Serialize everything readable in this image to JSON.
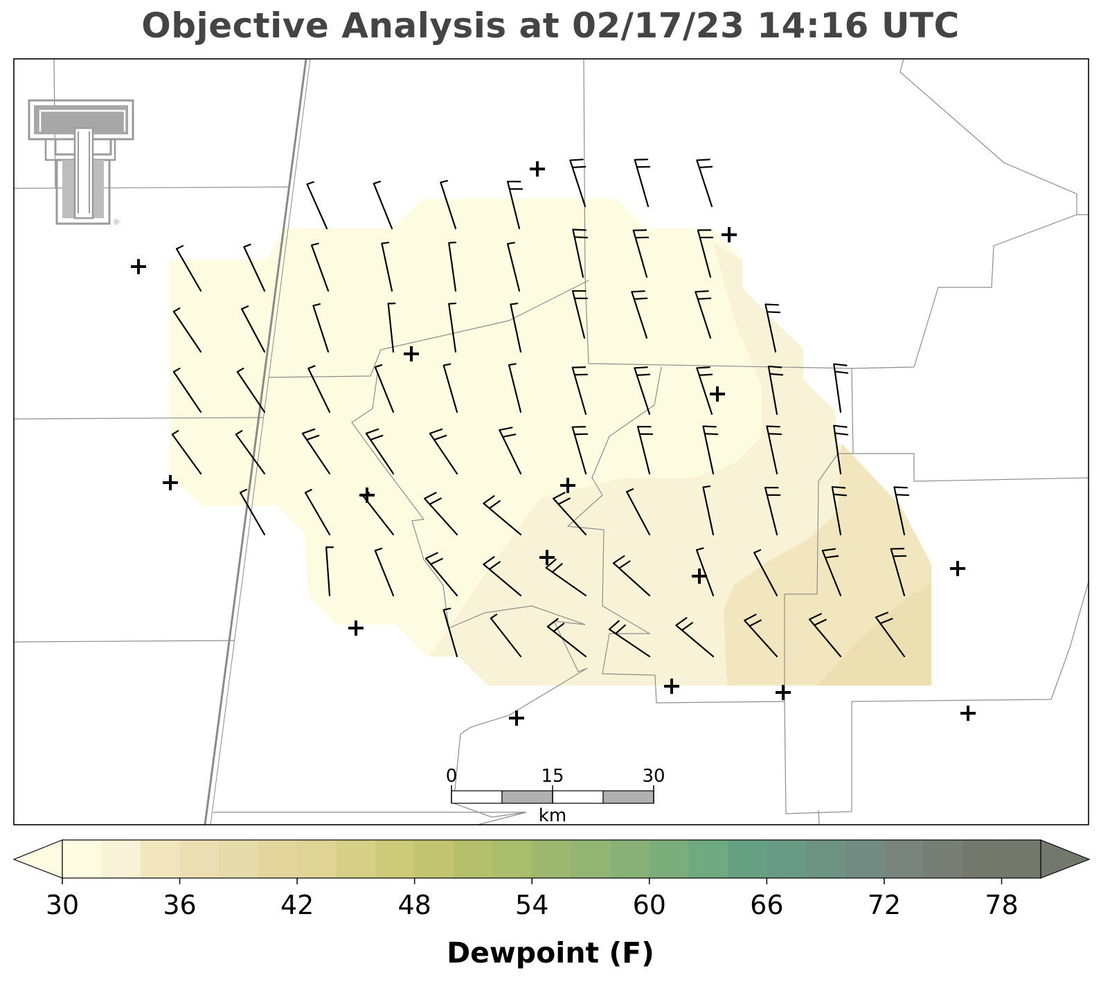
{
  "title": "Objective Analysis at 02/17/23 14:16 UTC",
  "colorbar": {
    "label": "Dewpoint (F)",
    "min": 30,
    "max": 80,
    "step": 2,
    "ticks": [
      "30",
      "36",
      "42",
      "48",
      "54",
      "60",
      "66",
      "72",
      "78"
    ],
    "extend": "both"
  },
  "scale_bar": {
    "labels": [
      "0",
      "15",
      "30"
    ],
    "unit": "km"
  },
  "logo": {
    "name": "Texas Tech Double T",
    "color": "#9a9a9a"
  },
  "colors": {
    "barb": "#000000",
    "station": "#000000",
    "boundaries": "#8c8c8c",
    "state_line": "#888888",
    "field_30_32": "#fdfbe0",
    "field_32_34": "#f8f3d6",
    "field_34_36": "#f1e6bd",
    "field_36_38": "#ece0b2"
  }
}
